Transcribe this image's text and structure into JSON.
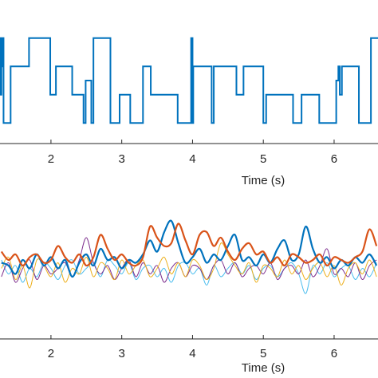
{
  "chart_data": [
    {
      "type": "line",
      "title": "",
      "xlabel": "Time (s)",
      "ylabel": "",
      "xlim": [
        1.28,
        6.62
      ],
      "ylim": [
        0,
        4
      ],
      "x_ticks": [
        2,
        3,
        4,
        5,
        6
      ],
      "x_tick_labels": [
        "2",
        "3",
        "4",
        "5",
        "6"
      ],
      "grid": false,
      "series": [
        {
          "color": "#0072BD",
          "x": [
            1.28,
            1.29,
            1.29,
            1.3,
            1.3,
            1.31,
            1.31,
            1.33,
            1.33,
            1.43,
            1.43,
            1.69,
            1.69,
            1.74,
            1.74,
            1.99,
            1.99,
            2.07,
            2.07,
            2.3,
            2.3,
            2.46,
            2.46,
            2.49,
            2.49,
            2.57,
            2.57,
            2.6,
            2.6,
            2.62,
            2.62,
            2.84,
            2.84,
            2.97,
            2.97,
            3.12,
            3.12,
            3.3,
            3.3,
            3.41,
            3.41,
            3.79,
            3.79,
            3.98,
            3.98,
            4.0,
            4.0,
            4.01,
            4.01,
            4.27,
            4.27,
            4.3,
            4.3,
            4.62,
            4.62,
            4.72,
            4.72,
            4.93,
            4.93,
            5.0,
            5.0,
            5.04,
            5.04,
            5.42,
            5.42,
            5.54,
            5.54,
            5.79,
            5.79,
            6.03,
            6.03,
            6.06,
            6.06,
            6.08,
            6.08,
            6.11,
            6.11,
            6.35,
            6.35,
            6.52,
            6.52,
            6.62
          ],
          "y": [
            3.5,
            3.5,
            1.5,
            1.5,
            2.5,
            2.5,
            3.5,
            3.5,
            0.5,
            0.5,
            2.5,
            2.5,
            3.5,
            3.5,
            3.5,
            3.5,
            1.5,
            1.5,
            2.5,
            2.5,
            1.5,
            1.5,
            0.5,
            0.5,
            2.0,
            2.0,
            0.5,
            0.5,
            3.5,
            3.5,
            3.5,
            3.5,
            0.5,
            0.5,
            1.5,
            1.5,
            0.5,
            0.5,
            2.5,
            2.5,
            1.5,
            1.5,
            0.5,
            0.5,
            3.5,
            3.5,
            0.5,
            0.5,
            2.5,
            2.5,
            0.5,
            0.5,
            2.5,
            2.5,
            1.5,
            1.5,
            2.5,
            2.5,
            2.5,
            2.5,
            0.5,
            0.5,
            1.5,
            1.5,
            0.5,
            0.5,
            1.5,
            1.5,
            0.5,
            0.5,
            2.0,
            2.0,
            2.5,
            2.5,
            1.5,
            1.5,
            2.5,
            2.5,
            0.5,
            0.5,
            3.5,
            3.5
          ]
        }
      ]
    },
    {
      "type": "line",
      "title": "",
      "xlabel": "Time (s)",
      "ylabel": "",
      "xlim": [
        1.28,
        6.62
      ],
      "ylim": [
        -2,
        2
      ],
      "x_ticks": [
        2,
        3,
        4,
        5,
        6
      ],
      "x_tick_labels": [
        "2",
        "3",
        "4",
        "5",
        "6"
      ],
      "grid": false,
      "series": [
        {
          "color": "#D95319",
          "x": [
            1.3,
            1.4,
            1.5,
            1.6,
            1.7,
            1.8,
            1.9,
            2.0,
            2.1,
            2.2,
            2.3,
            2.4,
            2.5,
            2.6,
            2.7,
            2.8,
            2.9,
            3.0,
            3.1,
            3.2,
            3.3,
            3.4,
            3.5,
            3.6,
            3.7,
            3.8,
            3.9,
            4.0,
            4.1,
            4.2,
            4.3,
            4.4,
            4.5,
            4.6,
            4.7,
            4.8,
            4.9,
            5.0,
            5.1,
            5.2,
            5.3,
            5.4,
            5.5,
            5.6,
            5.7,
            5.8,
            5.9,
            6.0,
            6.1,
            6.2,
            6.3,
            6.4,
            6.5,
            6.6
          ],
          "y": [
            0.7,
            0.4,
            0.6,
            0.2,
            0.5,
            0.6,
            0.3,
            0.4,
            0.9,
            0.5,
            0.3,
            0.6,
            0.2,
            0.5,
            1.3,
            0.8,
            0.4,
            0.6,
            0.3,
            0.2,
            0.5,
            1.6,
            1.2,
            0.9,
            1.0,
            1.7,
            1.1,
            0.6,
            1.3,
            1.4,
            0.9,
            1.2,
            0.7,
            0.4,
            0.8,
            1.0,
            0.6,
            0.7,
            0.3,
            0.5,
            0.2,
            0.6,
            0.5,
            0.3,
            0.4,
            0.6,
            0.2,
            0.5,
            0.4,
            0.3,
            0.5,
            0.7,
            1.5,
            0.9
          ]
        },
        {
          "color": "#0072BD",
          "x": [
            1.3,
            1.4,
            1.5,
            1.6,
            1.7,
            1.8,
            1.9,
            2.0,
            2.1,
            2.2,
            2.3,
            2.4,
            2.5,
            2.6,
            2.7,
            2.8,
            2.9,
            3.0,
            3.1,
            3.2,
            3.3,
            3.4,
            3.5,
            3.6,
            3.7,
            3.8,
            3.9,
            4.0,
            4.1,
            4.2,
            4.3,
            4.4,
            4.5,
            4.6,
            4.7,
            4.8,
            4.9,
            5.0,
            5.1,
            5.2,
            5.3,
            5.4,
            5.5,
            5.6,
            5.7,
            5.8,
            5.9,
            6.0,
            6.1,
            6.2,
            6.3,
            6.4,
            6.5,
            6.6
          ],
          "y": [
            0.3,
            0.2,
            -0.1,
            0.4,
            0.1,
            0.6,
            0.2,
            0.5,
            0.1,
            0.4,
            -0.2,
            0.3,
            0.6,
            0.2,
            0.8,
            0.4,
            0.5,
            0.1,
            0.4,
            0.3,
            0.6,
            1.1,
            0.7,
            1.4,
            1.8,
            1.0,
            0.3,
            0.5,
            0.8,
            0.3,
            0.6,
            0.4,
            0.9,
            1.3,
            0.4,
            0.5,
            0.2,
            0.6,
            0.3,
            0.8,
            1.1,
            0.4,
            0.6,
            1.6,
            0.8,
            0.3,
            0.5,
            0.1,
            0.4,
            0.2,
            0.5,
            0.3,
            0.6,
            0.2
          ]
        },
        {
          "color": "#EDB120",
          "x": [
            1.3,
            1.4,
            1.5,
            1.6,
            1.7,
            1.8,
            1.9,
            2.0,
            2.1,
            2.2,
            2.3,
            2.4,
            2.5,
            2.6,
            2.7,
            2.8,
            2.9,
            3.0,
            3.1,
            3.2,
            3.3,
            3.4,
            3.5,
            3.6,
            3.7,
            3.8,
            3.9,
            4.0,
            4.1,
            4.2,
            4.3,
            4.4,
            4.5,
            4.6,
            4.7,
            4.8,
            4.9,
            5.0,
            5.1,
            5.2,
            5.3,
            5.4,
            5.5,
            5.6,
            5.7,
            5.8,
            5.9,
            6.0,
            6.1,
            6.2,
            6.3,
            6.4,
            6.5,
            6.6
          ],
          "y": [
            0.1,
            0.5,
            -0.3,
            0.2,
            -0.6,
            0.4,
            0.2,
            -0.2,
            0.3,
            -0.4,
            0.1,
            -0.1,
            0.5,
            -0.2,
            0.3,
            0.1,
            -0.3,
            0.4,
            -0.1,
            0.2,
            0.4,
            -0.2,
            0.1,
            0.5,
            -0.1,
            0.3,
            -0.2,
            0.4,
            0.2,
            -0.3,
            0.1,
            1.0,
            0.6,
            0.2,
            -0.1,
            0.3,
            -0.4,
            0.2,
            0.1,
            -0.2,
            0.4,
            -0.1,
            0.2,
            -0.3,
            0.1,
            0.3,
            -0.2,
            0.2,
            -0.5,
            0.1,
            0.3,
            -0.1,
            0.4,
            -0.2
          ]
        },
        {
          "color": "#7E2F8E",
          "x": [
            1.3,
            1.4,
            1.5,
            1.6,
            1.7,
            1.8,
            1.9,
            2.0,
            2.1,
            2.2,
            2.3,
            2.4,
            2.5,
            2.6,
            2.7,
            2.8,
            2.9,
            3.0,
            3.1,
            3.2,
            3.3,
            3.4,
            3.5,
            3.6,
            3.7,
            3.8,
            3.9,
            4.0,
            4.1,
            4.2,
            4.3,
            4.4,
            4.5,
            4.6,
            4.7,
            4.8,
            4.9,
            5.0,
            5.1,
            5.2,
            5.3,
            5.4,
            5.5,
            5.6,
            5.7,
            5.8,
            5.9,
            6.0,
            6.1,
            6.2,
            6.3,
            6.4,
            6.5,
            6.6
          ],
          "y": [
            -0.2,
            0.3,
            -0.4,
            0.1,
            0.4,
            -0.3,
            0.2,
            -0.1,
            0.1,
            0.3,
            -0.2,
            0.4,
            1.2,
            0.3,
            -0.1,
            0.2,
            -0.3,
            0.1,
            0.4,
            -0.2,
            0.3,
            -0.1,
            0.2,
            -0.4,
            0.1,
            0.3,
            -0.2,
            0.2,
            0.1,
            -0.3,
            0.2,
            0.4,
            -0.1,
            0.3,
            -0.2,
            0.1,
            0.2,
            -0.1,
            0.3,
            -0.3,
            0.1,
            0.2,
            -0.1,
            0.4,
            -0.2,
            0.2,
            0.8,
            -0.1,
            0.1,
            -0.2,
            0.3,
            -0.3,
            0.2,
            0.4
          ]
        },
        {
          "color": "#4DBEEE",
          "x": [
            1.3,
            1.4,
            1.5,
            1.6,
            1.7,
            1.8,
            1.9,
            2.0,
            2.1,
            2.2,
            2.3,
            2.4,
            2.5,
            2.6,
            2.7,
            2.8,
            2.9,
            3.0,
            3.1,
            3.2,
            3.3,
            3.4,
            3.5,
            3.6,
            3.7,
            3.8,
            3.9,
            4.0,
            4.1,
            4.2,
            4.3,
            4.4,
            4.5,
            4.6,
            4.7,
            4.8,
            4.9,
            5.0,
            5.1,
            5.2,
            5.3,
            5.4,
            5.5,
            5.6,
            5.7,
            5.8,
            5.9,
            6.0,
            6.1,
            6.2,
            6.3,
            6.4,
            6.5,
            6.6
          ],
          "y": [
            0.4,
            -0.1,
            0.2,
            -0.4,
            0.1,
            -0.2,
            0.3,
            0.1,
            -0.3,
            0.2,
            0.4,
            -0.1,
            0.1,
            0.3,
            -0.2,
            0.4,
            0.2,
            -0.1,
            0.3,
            -0.3,
            0.1,
            0.2,
            -0.2,
            0.1,
            -0.4,
            0.2,
            0.3,
            -0.1,
            0.1,
            -0.5,
            0.2,
            -0.2,
            0.1,
            0.3,
            -0.1,
            0.2,
            -0.3,
            0.1,
            0.2,
            -0.2,
            0.1,
            0.3,
            -0.1,
            -0.8,
            0.2,
            -0.1,
            0.3,
            -0.2,
            0.1,
            0.2,
            -0.3,
            0.1,
            -0.2,
            0.3
          ]
        }
      ]
    }
  ]
}
